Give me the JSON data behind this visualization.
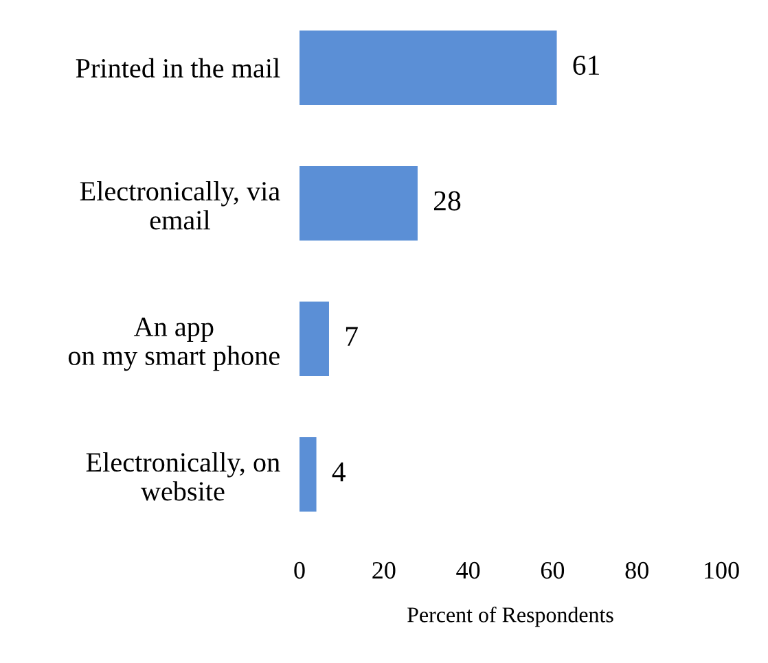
{
  "chart_data": {
    "type": "bar",
    "orientation": "horizontal",
    "categories": [
      "Printed in the mail",
      "Electronically, via\nemail",
      "An app\non my smart phone",
      "Electronically, on\nwebsite"
    ],
    "values": [
      61,
      28,
      7,
      4
    ],
    "color": "#5b8fd6",
    "xlim": [
      0,
      100
    ],
    "xticks": [
      0,
      20,
      40,
      60,
      80,
      100
    ],
    "xlabel": "Percent of Respondents",
    "data_labels": true,
    "grid": false,
    "legend": false
  }
}
